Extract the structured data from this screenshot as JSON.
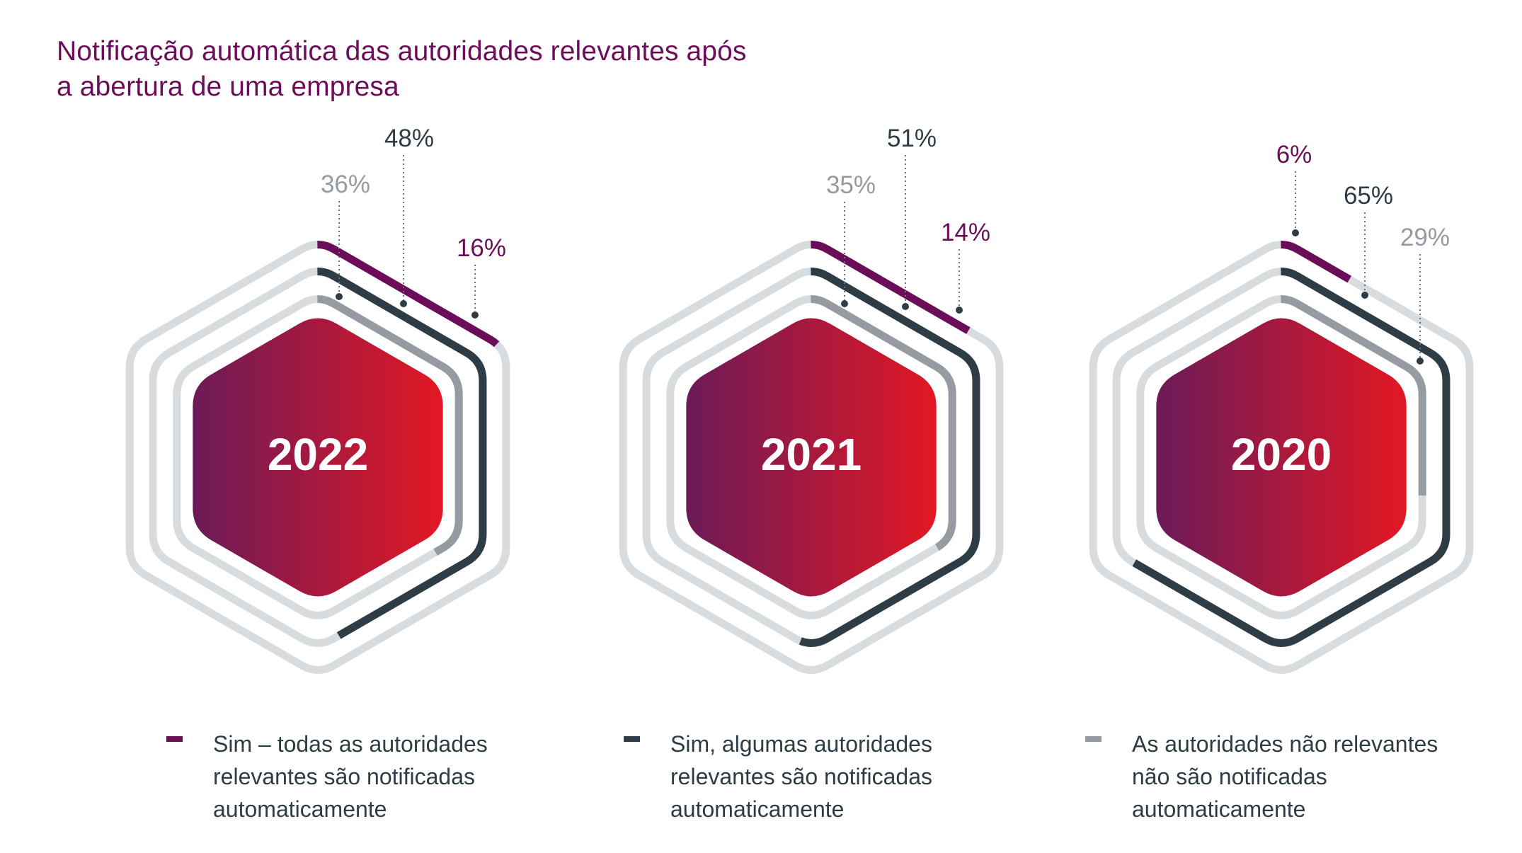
{
  "title": {
    "lines": [
      "Notificação automática das autoridades relevantes após",
      "a abertura de uma empresa"
    ]
  },
  "colors": {
    "title": "#6c0d5a",
    "track": "#d9dcdf",
    "core_gradient_start": "#6b1a58",
    "core_gradient_end": "#e31824",
    "year_text": "#ffffff",
    "leader": "#2e3c45"
  },
  "chart_data": {
    "type": "radial-hexagon-bar",
    "title": "Notificação automática das autoridades relevantes após a abertura de uma empresa",
    "unit": "%",
    "categories": [
      "2022",
      "2021",
      "2020"
    ],
    "series": [
      {
        "name": "Sim – todas as autoridades relevantes são notificadas automaticamente",
        "key": "all",
        "color": "#6c0d5a",
        "values": [
          16,
          14,
          6
        ]
      },
      {
        "name": "Sim, algumas autoridades relevantes são notificadas automaticamente",
        "key": "some",
        "color": "#2e3c45",
        "values": [
          48,
          51,
          65
        ]
      },
      {
        "name": "As autoridades não relevantes não são notificadas automaticamente",
        "key": "none",
        "color": "#959ba0",
        "values": [
          36,
          35,
          29
        ]
      }
    ],
    "legend_position": "bottom"
  },
  "panels": [
    {
      "year": "2022",
      "labels": {
        "all": "16%",
        "some": "48%",
        "none": "36%"
      }
    },
    {
      "year": "2021",
      "labels": {
        "all": "14%",
        "some": "51%",
        "none": "35%"
      }
    },
    {
      "year": "2020",
      "labels": {
        "all": "6%",
        "some": "65%",
        "none": "29%"
      }
    }
  ],
  "legend": [
    {
      "color": "#6c0d5a",
      "lines": [
        "Sim – todas as autoridades",
        "relevantes são notificadas",
        "automaticamente"
      ]
    },
    {
      "color": "#2e3c45",
      "lines": [
        "Sim, algumas autoridades",
        "relevantes são notificadas",
        "automaticamente"
      ]
    },
    {
      "color": "#959ba0",
      "lines": [
        "As autoridades não relevantes",
        "não são notificadas",
        "automaticamente"
      ]
    }
  ]
}
